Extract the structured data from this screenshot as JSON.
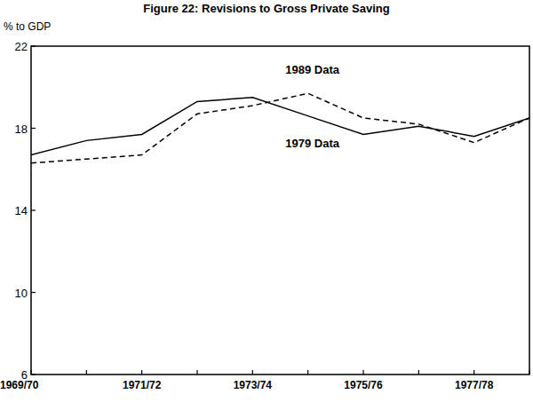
{
  "chart_data": {
    "type": "line",
    "title": "Figure 22: Revisions to Gross Private Saving",
    "y_label": "% to GDP",
    "categories": [
      "1969/70",
      null,
      "1971/72",
      null,
      "1973/74",
      null,
      "1975/76",
      null,
      "1977/78",
      null
    ],
    "series": [
      {
        "name": "1979 Data",
        "color": "#000000",
        "line_style": "solid",
        "values": [
          16.7,
          17.4,
          17.7,
          19.3,
          19.5,
          18.6,
          17.7,
          18.1,
          17.6,
          18.5
        ]
      },
      {
        "name": "1989 Data",
        "color": "#000000",
        "line_style": "dashed",
        "values": [
          16.3,
          16.5,
          16.7,
          18.7,
          19.1,
          19.7,
          18.5,
          18.2,
          17.3,
          18.5
        ]
      }
    ],
    "ylim": [
      6,
      22
    ],
    "yticks": [
      6,
      10,
      14,
      18,
      22
    ],
    "grid": false
  }
}
